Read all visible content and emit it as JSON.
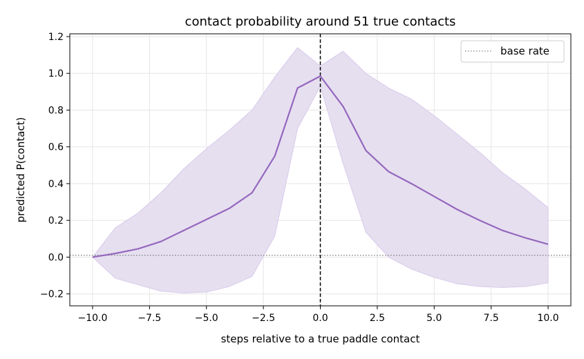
{
  "chart_data": {
    "type": "line",
    "title": "contact probability around 51 true contacts",
    "xlabel": "steps relative to a true paddle contact",
    "ylabel": "predicted P(contact)",
    "xlim": [
      -11.0,
      11.0
    ],
    "ylim": [
      -0.265,
      1.215
    ],
    "x_ticks": [
      -10.0,
      -7.5,
      -5.0,
      -2.5,
      0.0,
      2.5,
      5.0,
      7.5,
      10.0
    ],
    "x_tick_labels": [
      "−10.0",
      "−7.5",
      "−5.0",
      "−2.5",
      "0.0",
      "2.5",
      "5.0",
      "7.5",
      "10.0"
    ],
    "y_ticks": [
      -0.2,
      0.0,
      0.2,
      0.4,
      0.6,
      0.8,
      1.0,
      1.2
    ],
    "y_tick_labels": [
      "−0.2",
      "0.0",
      "0.2",
      "0.4",
      "0.6",
      "0.8",
      "1.0",
      "1.2"
    ],
    "grid": true,
    "legend_position": "top-right",
    "legend_entries": [
      {
        "label": "base rate",
        "style": "dotted",
        "color": "#808080"
      }
    ],
    "base_rate": 0.01,
    "vertical_line_x": 0.0,
    "x": [
      -10,
      -9,
      -8,
      -7,
      -6,
      -5,
      -4,
      -3,
      -2,
      -1,
      0,
      1,
      2,
      3,
      4,
      5,
      6,
      7,
      8,
      9,
      10
    ],
    "mean": [
      0.0,
      0.02,
      0.045,
      0.085,
      0.145,
      0.205,
      0.265,
      0.35,
      0.55,
      0.92,
      0.985,
      0.82,
      0.58,
      0.465,
      0.4,
      0.33,
      0.26,
      0.2,
      0.145,
      0.105,
      0.07
    ],
    "upper": [
      0.0,
      0.16,
      0.24,
      0.35,
      0.48,
      0.59,
      0.69,
      0.8,
      0.98,
      1.14,
      1.04,
      1.12,
      1.0,
      0.92,
      0.86,
      0.77,
      0.67,
      0.57,
      0.46,
      0.37,
      0.27
    ],
    "lower": [
      0.0,
      -0.115,
      -0.15,
      -0.185,
      -0.195,
      -0.19,
      -0.16,
      -0.105,
      0.115,
      0.7,
      0.93,
      0.51,
      0.135,
      0.0,
      -0.065,
      -0.11,
      -0.145,
      -0.16,
      -0.165,
      -0.16,
      -0.14
    ],
    "colors": {
      "line": "#9467bd",
      "band": "#e6dff0",
      "band_edge": "#d7c9ea",
      "base_rate": "#808080",
      "vline": "#000000",
      "grid": "#e5e5e5"
    }
  }
}
